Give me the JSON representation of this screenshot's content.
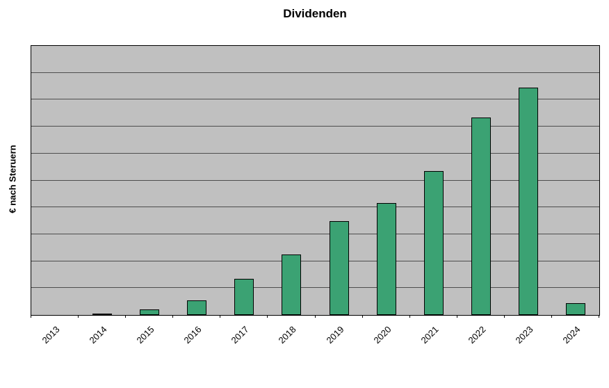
{
  "chart_data": {
    "type": "bar",
    "title": "Dividenden",
    "ylabel": "€ nach Steruern",
    "xlabel": "",
    "categories": [
      "2013",
      "2014",
      "2015",
      "2016",
      "2017",
      "2018",
      "2019",
      "2020",
      "2021",
      "2022",
      "2023",
      "2024"
    ],
    "values": [
      0,
      0.05,
      0.2,
      0.55,
      1.35,
      2.25,
      3.5,
      4.15,
      5.35,
      7.35,
      8.45,
      0.45
    ],
    "ylim": [
      0,
      10
    ],
    "gridline_interval": 1,
    "grid": "horizontal",
    "legend": "none",
    "colors": {
      "bar_fill": "#3ba273",
      "bar_border": "#000000",
      "plot_background": "#c0c0c0",
      "gridline": "#4d4d4d",
      "text": "#000000",
      "page_background": "#ffffff"
    }
  }
}
